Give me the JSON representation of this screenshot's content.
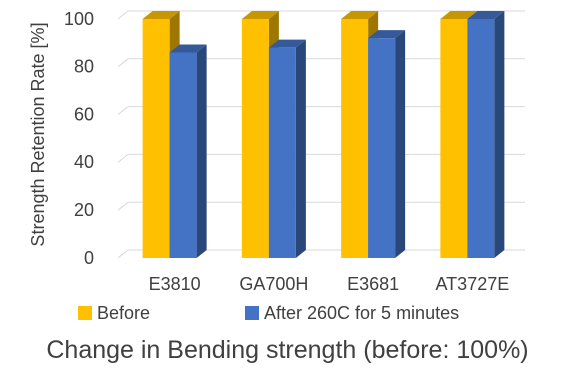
{
  "chart_data": {
    "type": "bar",
    "categories": [
      "E3810",
      "GA700H",
      "E3681",
      "AT3727E"
    ],
    "series": [
      {
        "name": "Before",
        "values": [
          100,
          100,
          100,
          100
        ],
        "color": "#FFC000"
      },
      {
        "name": "After 260C for 5 minutes",
        "values": [
          86,
          88,
          92,
          100
        ],
        "color": "#4472C4"
      }
    ],
    "ylabel": "Strength Retention Rate [%]",
    "ylim": [
      0,
      100
    ],
    "yticks": [
      0,
      20,
      40,
      60,
      80,
      100
    ],
    "grid": true,
    "legend_position": "bottom",
    "style": "3d-clustered-column"
  },
  "caption": "Change in Bending strength (before: 100%)"
}
